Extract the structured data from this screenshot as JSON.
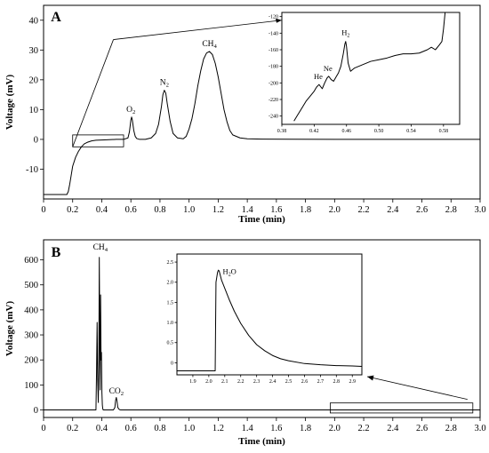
{
  "chart_data": [
    {
      "id": "A",
      "type": "line",
      "panel_label": "A",
      "xlabel": "Time (min)",
      "ylabel": "Voltage (mV)",
      "xlim": [
        0,
        3.0
      ],
      "ylim": [
        -20,
        45
      ],
      "xticks": [
        "0",
        "0.2",
        "0.4",
        "0.6",
        "0.8",
        "1.0",
        "1.2",
        "1.4",
        "1.6",
        "1.8",
        "2.0",
        "2.2",
        "2.4",
        "2.6",
        "2.8",
        "3.0"
      ],
      "yticks": [
        "-10",
        "0",
        "10",
        "20",
        "30",
        "40"
      ],
      "peaks": [
        {
          "label": "O",
          "sub": "2",
          "x": 0.6,
          "y": 7.5
        },
        {
          "label": "N",
          "sub": "2",
          "x": 0.83,
          "y": 16.5
        },
        {
          "label": "CH",
          "sub": "4",
          "x": 1.14,
          "y": 29.5
        }
      ],
      "series": [
        {
          "x": [
            0,
            0.16,
            0.17,
            0.18,
            0.19,
            0.2,
            0.22,
            0.24,
            0.26,
            0.28,
            0.3,
            0.33,
            0.36,
            0.4,
            0.45,
            0.5,
            0.55,
            0.58,
            0.59,
            0.6,
            0.605,
            0.61,
            0.62,
            0.63,
            0.64,
            0.66,
            0.7,
            0.74,
            0.77,
            0.79,
            0.81,
            0.82,
            0.83,
            0.84,
            0.85,
            0.87,
            0.89,
            0.92,
            0.96,
            0.98,
            1.0,
            1.02,
            1.04,
            1.06,
            1.08,
            1.1,
            1.12,
            1.14,
            1.16,
            1.18,
            1.2,
            1.22,
            1.24,
            1.26,
            1.28,
            1.3,
            1.35,
            1.4,
            1.5,
            1.7,
            2.0,
            2.4,
            2.8,
            3.0
          ],
          "y": [
            -18.5,
            -18.5,
            -17.5,
            -15,
            -12,
            -9,
            -6,
            -4,
            -2.5,
            -1.5,
            -1,
            -0.5,
            -0.3,
            -0.2,
            -0.1,
            0,
            0,
            0.5,
            2.5,
            6.5,
            7.5,
            6.5,
            3,
            1,
            0.3,
            0,
            0,
            0.5,
            2,
            5,
            11,
            15,
            16.5,
            15.5,
            12,
            6,
            2,
            0.5,
            0.2,
            1,
            3.5,
            7,
            12,
            18,
            23,
            27,
            29,
            29.5,
            28.5,
            25.5,
            21,
            15.5,
            10,
            6,
            3,
            1.5,
            0.5,
            0.2,
            0.1,
            0.05,
            0.0,
            0.0,
            0.0,
            0.0
          ]
        }
      ],
      "zoom_box": {
        "x": [
          0.2,
          0.55
        ],
        "y": [
          -2.5,
          1.5
        ]
      },
      "inset": {
        "xlim": [
          0.38,
          0.6
        ],
        "ylim": [
          -250,
          -115
        ],
        "xticks": [
          "0.38",
          "0.42",
          "0.46",
          "0.50",
          "0.54",
          "0.58"
        ],
        "yticks": [
          "-120",
          "-140",
          "-160",
          "-180",
          "-200",
          "-220",
          "-240"
        ],
        "peaks": [
          {
            "label": "He",
            "sub": "",
            "x": 0.425,
            "y": -203
          },
          {
            "label": "Ne",
            "sub": "",
            "x": 0.437,
            "y": -193
          },
          {
            "label": "H",
            "sub": "2",
            "x": 0.459,
            "y": -150
          }
        ],
        "series": [
          {
            "x": [
              0.395,
              0.4,
              0.405,
              0.41,
              0.415,
              0.42,
              0.423,
              0.426,
              0.43,
              0.433,
              0.436,
              0.438,
              0.441,
              0.444,
              0.447,
              0.45,
              0.453,
              0.456,
              0.458,
              0.459,
              0.46,
              0.462,
              0.465,
              0.47,
              0.48,
              0.49,
              0.5,
              0.51,
              0.52,
              0.53,
              0.54,
              0.55,
              0.56,
              0.565,
              0.57,
              0.575,
              0.578,
              0.58,
              0.582
            ],
            "y": [
              -246,
              -238,
              -230,
              -222,
              -216,
              -210,
              -205,
              -202,
              -207,
              -200,
              -194,
              -192,
              -196,
              -198,
              -193,
              -188,
              -180,
              -165,
              -153,
              -150,
              -156,
              -176,
              -186,
              -182,
              -178,
              -174,
              -172,
              -170,
              -167,
              -165,
              -165,
              -164,
              -160,
              -157,
              -160,
              -154,
              -150,
              -135,
              -115
            ]
          }
        ]
      }
    },
    {
      "id": "B",
      "type": "line",
      "panel_label": "B",
      "xlabel": "Time (min)",
      "ylabel": "Voltage (mV)",
      "xlim": [
        0,
        3.0
      ],
      "ylim": [
        -30,
        680
      ],
      "xticks": [
        "0",
        "0.2",
        "0.4",
        "0.6",
        "0.8",
        "1.0",
        "1.2",
        "1.4",
        "1.6",
        "1.8",
        "2.0",
        "2.2",
        "2.4",
        "2.6",
        "2.8",
        "3.0"
      ],
      "yticks": [
        "0",
        "100",
        "200",
        "300",
        "400",
        "500",
        "600"
      ],
      "peaks": [
        {
          "label": "CH",
          "sub": "4",
          "x": 0.39,
          "y": 620
        },
        {
          "label": "CO",
          "sub": "2",
          "x": 0.5,
          "y": 45
        }
      ],
      "series": [
        {
          "x": [
            0,
            0.36,
            0.364,
            0.368,
            0.372,
            0.376,
            0.38,
            0.383,
            0.386,
            0.389,
            0.392,
            0.395,
            0.398,
            0.401,
            0.404,
            0.407,
            0.41,
            0.48,
            0.49,
            0.495,
            0.5,
            0.505,
            0.51,
            0.52,
            0.53,
            3.0
          ],
          "y": [
            0,
            0,
            150,
            350,
            120,
            30,
            200,
            610,
            300,
            80,
            460,
            200,
            230,
            70,
            20,
            5,
            0,
            0,
            10,
            38,
            50,
            35,
            10,
            2,
            0,
            0
          ]
        }
      ],
      "zoom_box": {
        "x": [
          1.97,
          2.95
        ],
        "y": [
          -12,
          28
        ]
      },
      "inset": {
        "xlim": [
          1.8,
          2.96
        ],
        "ylim": [
          -0.3,
          2.7
        ],
        "xticks": [
          "1.9",
          "2.0",
          "2.1",
          "2.2",
          "2.3",
          "2.4",
          "2.5",
          "2.6",
          "2.7",
          "2.8",
          "2.9"
        ],
        "yticks": [
          "0",
          "0.5",
          "1.0",
          "1.5",
          "2.0",
          "2.5"
        ],
        "peaks": [
          {
            "label": "H",
            "sub": "2",
            "label_after": "O",
            "x": 2.13,
            "y": 2.05
          }
        ],
        "series": [
          {
            "x": [
              1.8,
              2.04,
              2.045,
              2.055,
              2.06,
              2.065,
              2.07,
              2.08,
              2.1,
              2.13,
              2.16,
              2.2,
              2.25,
              2.3,
              2.35,
              2.4,
              2.45,
              2.5,
              2.6,
              2.7,
              2.8,
              2.9,
              2.96
            ],
            "y": [
              -0.2,
              -0.2,
              2.0,
              2.25,
              2.3,
              2.28,
              2.2,
              2.05,
              1.85,
              1.55,
              1.28,
              0.98,
              0.68,
              0.45,
              0.3,
              0.18,
              0.1,
              0.05,
              -0.02,
              -0.05,
              -0.07,
              -0.08,
              -0.09
            ]
          }
        ]
      }
    }
  ]
}
